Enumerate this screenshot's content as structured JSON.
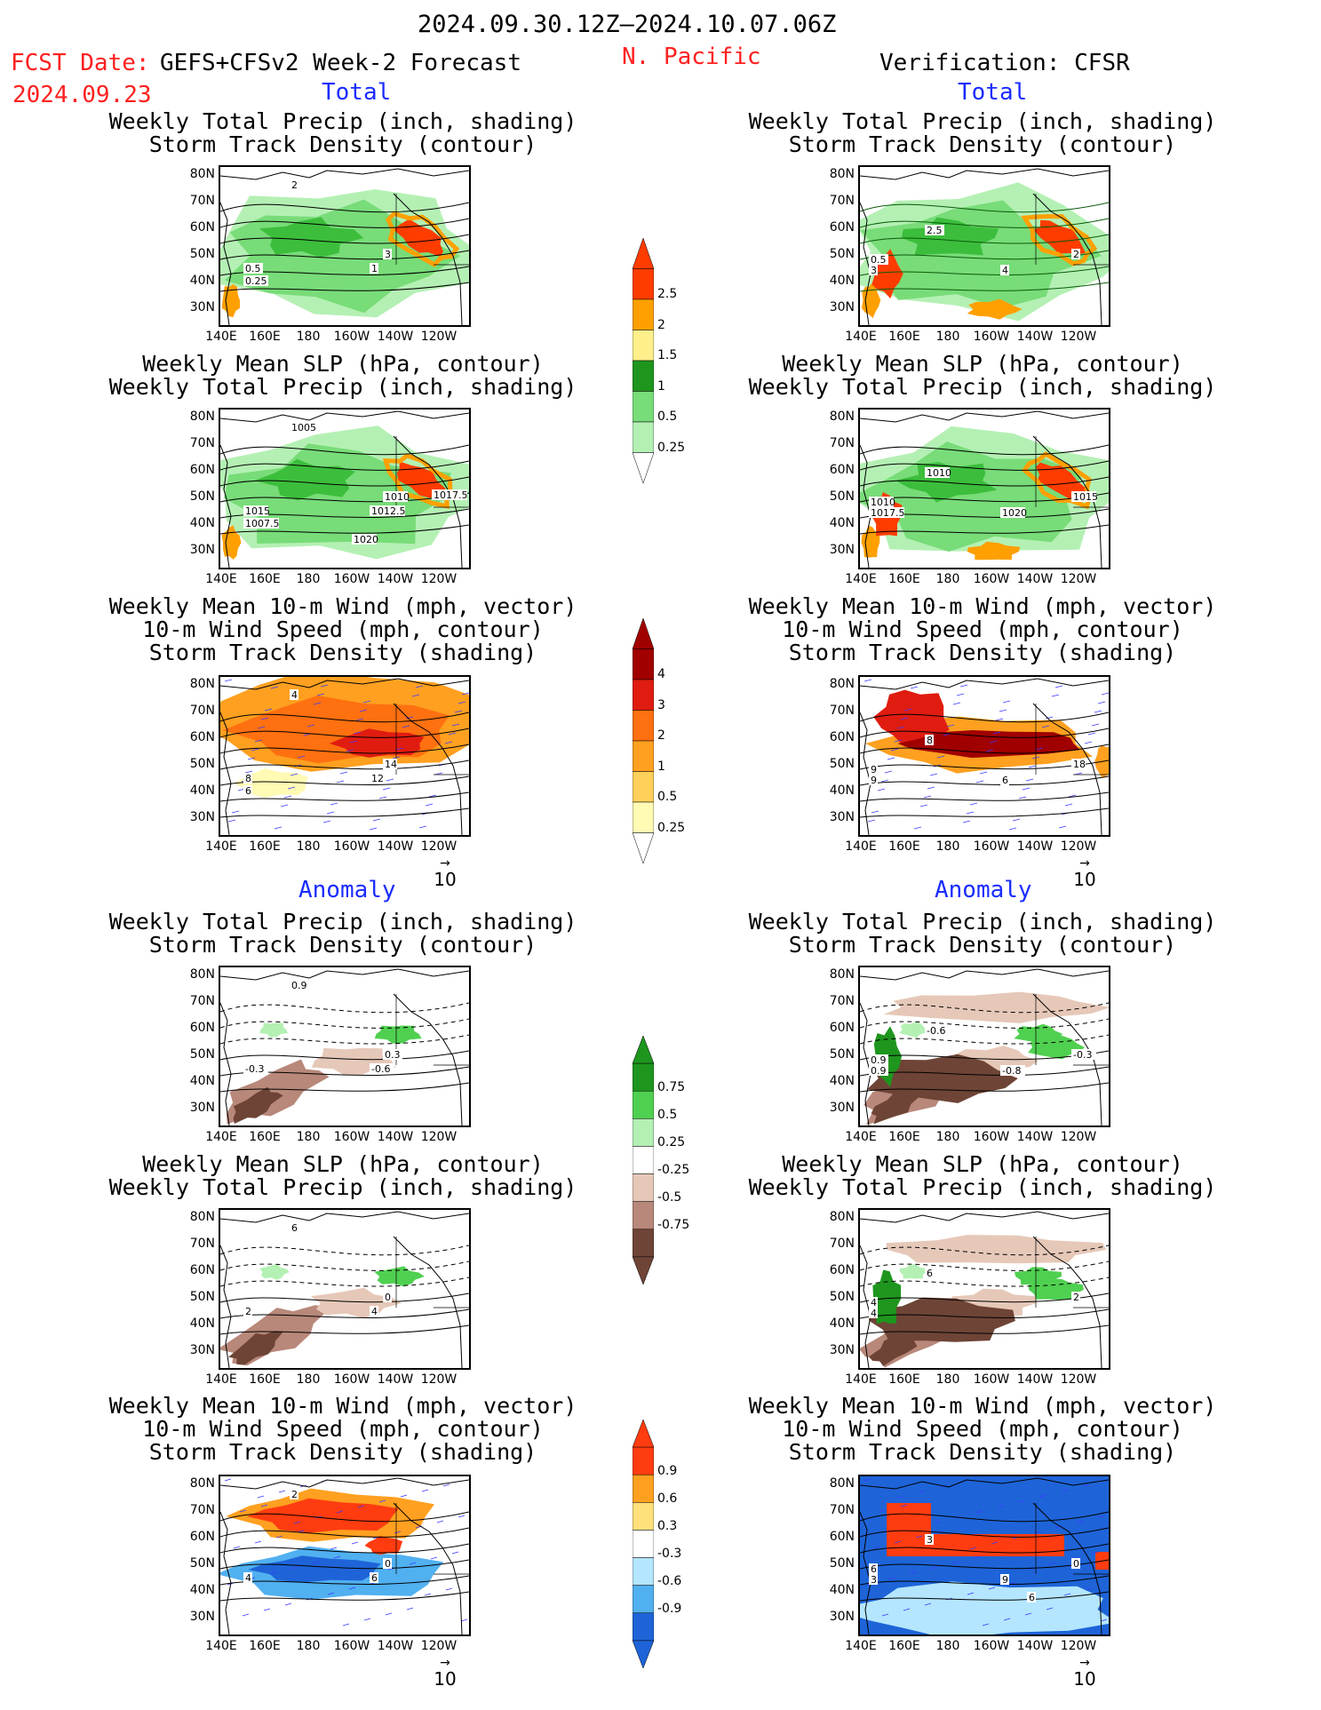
{
  "header": {
    "period": "2024.09.30.12Z—2024.10.07.06Z",
    "region": "N. Pacific",
    "fcst_label": "FCST Date:",
    "fcst_model": "GEFS+CFSv2 Week-2 Forecast",
    "fcst_date": "2024.09.23",
    "verification": "Verification: CFSR"
  },
  "sections": {
    "total": "Total",
    "anomaly": "Anomaly"
  },
  "titles": {
    "precip_track": [
      "Weekly Total Precip (inch, shading)",
      "Storm Track Density (contour)"
    ],
    "slp_precip": [
      "Weekly Mean SLP (hPa, contour)",
      "Weekly Total Precip (inch, shading)"
    ],
    "wind_track": [
      "Weekly Mean 10-m Wind (mph, vector)",
      "10-m Wind Speed (mph, contour)",
      "Storm Track Density (shading)"
    ]
  },
  "axes": {
    "lat": [
      "80N",
      "70N",
      "60N",
      "50N",
      "40N",
      "30N"
    ],
    "lon": [
      "140E",
      "160E",
      "180",
      "160W",
      "140W",
      "120W"
    ]
  },
  "vector_ref": "10",
  "colorbars": {
    "precip_total": [
      "2.5",
      "2",
      "1.5",
      "1",
      "0.5",
      "0.25"
    ],
    "track_total": [
      "4",
      "3",
      "2",
      "1",
      "0.5",
      "0.25"
    ],
    "precip_anom": [
      "0.75",
      "0.5",
      "0.25",
      "-0.25",
      "-0.5",
      "-0.75"
    ],
    "track_anom": [
      "0.9",
      "0.6",
      "0.3",
      "-0.3",
      "-0.6",
      "-0.9"
    ]
  },
  "contour_labels": {
    "fc_precip": [
      "2",
      "3",
      "1",
      "0.5",
      "0.25"
    ],
    "ob_precip": [
      "2.5",
      "2",
      "0.5",
      "3",
      "4"
    ],
    "fc_slp": [
      "1005",
      "1010",
      "1012.5",
      "1015",
      "1007.5",
      "1017.5",
      "1020"
    ],
    "ob_slp": [
      "1010",
      "1015",
      "1010",
      "1017.5",
      "1020"
    ],
    "fc_wind": [
      "4",
      "14",
      "12",
      "8",
      "6"
    ],
    "ob_wind": [
      "8",
      "18",
      "9",
      "9",
      "6"
    ],
    "fc_precip_anom": [
      "0.9",
      "0.3",
      "-0.6",
      "-0.3"
    ],
    "ob_precip_anom": [
      "-0.6",
      "-0.3",
      "0.9",
      "0.9",
      "-0.8"
    ],
    "fc_slp_anom": [
      "6",
      "0",
      "4",
      "2"
    ],
    "ob_slp_anom": [
      "6",
      "2",
      "4",
      "4"
    ],
    "fc_wind_anom": [
      "2",
      "0",
      "6",
      "4"
    ],
    "ob_wind_anom": [
      "3",
      "0",
      "6",
      "3",
      "9",
      "6"
    ]
  },
  "colors": {
    "precip": [
      "#b4f0b4",
      "#78dc78",
      "#3cbe3c",
      "#1e961e",
      "#fff08c",
      "#ffa000",
      "#ff3c00"
    ],
    "track": [
      "#fffab4",
      "#ffd05a",
      "#ffa020",
      "#ff7010",
      "#e01c10",
      "#a00000"
    ],
    "anom_precip_pos": [
      "#b4f0b4",
      "#50d050",
      "#1e961e"
    ],
    "anom_precip_neg": [
      "#e6c8b8",
      "#b8887a",
      "#6e4436"
    ],
    "anom_track_pos": [
      "#ffe07a",
      "#ffa020",
      "#ff3c10"
    ],
    "anom_track_neg": [
      "#b4e6ff",
      "#50b0f0",
      "#1e64d8"
    ]
  }
}
